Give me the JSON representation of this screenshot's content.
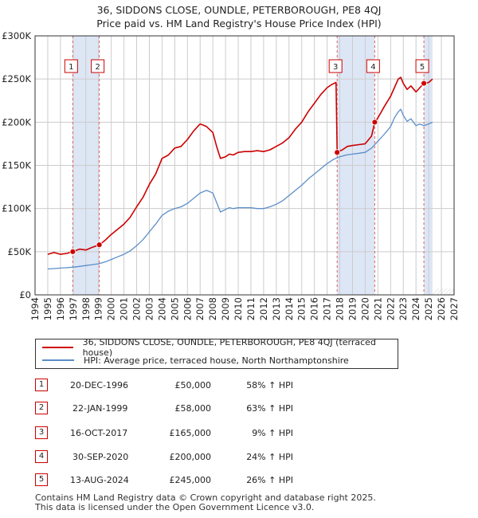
{
  "title_line1": "36, SIDDONS CLOSE, OUNDLE, PETERBOROUGH, PE8 4QJ",
  "title_line2": "Price paid vs. HM Land Registry's House Price Index (HPI)",
  "colors": {
    "property": "#cc0000",
    "hpi": "#5b8ec9",
    "shade": "#dde6f5",
    "grid": "#cccccc",
    "marker_line": "#e06060"
  },
  "chart_data": {
    "type": "line",
    "xlim": [
      1994,
      2027
    ],
    "ylim": [
      0,
      300000
    ],
    "x_ticks": [
      1994,
      1995,
      1996,
      1997,
      1998,
      1999,
      2000,
      2001,
      2002,
      2003,
      2004,
      2005,
      2006,
      2007,
      2008,
      2009,
      2010,
      2011,
      2012,
      2013,
      2014,
      2015,
      2016,
      2017,
      2018,
      2019,
      2020,
      2021,
      2022,
      2023,
      2024,
      2025,
      2026,
      2027
    ],
    "y_ticks": [
      0,
      50000,
      100000,
      150000,
      200000,
      250000,
      300000
    ],
    "y_tick_labels": [
      "£0",
      "£50K",
      "£100K",
      "£150K",
      "£200K",
      "£250K",
      "£300K"
    ],
    "shaded_ranges": [
      [
        1996.97,
        1999.06
      ],
      [
        2017.79,
        2020.75
      ],
      [
        2024.62,
        2025.3
      ]
    ],
    "series": [
      {
        "name": "36, SIDDONS CLOSE, OUNDLE, PETERBOROUGH, PE8 4QJ (terraced house)",
        "color": "#cc0000",
        "x": [
          1995.0,
          1995.5,
          1996.0,
          1996.5,
          1996.97,
          1997.5,
          1998.0,
          1998.5,
          1999.06,
          1999.5,
          2000.0,
          2000.5,
          2001.0,
          2001.5,
          2002.0,
          2002.5,
          2003.0,
          2003.5,
          2004.0,
          2004.5,
          2005.0,
          2005.5,
          2006.0,
          2006.5,
          2007.0,
          2007.5,
          2008.0,
          2008.3,
          2008.6,
          2009.0,
          2009.3,
          2009.6,
          2010.0,
          2010.5,
          2011.0,
          2011.5,
          2012.0,
          2012.5,
          2013.0,
          2013.5,
          2014.0,
          2014.5,
          2015.0,
          2015.5,
          2016.0,
          2016.5,
          2017.0,
          2017.4,
          2017.7,
          2017.79,
          2018.2,
          2018.6,
          2019.0,
          2019.5,
          2020.0,
          2020.5,
          2020.75,
          2021.0,
          2021.5,
          2022.0,
          2022.3,
          2022.6,
          2022.8,
          2023.0,
          2023.3,
          2023.6,
          2024.0,
          2024.3,
          2024.62,
          2025.0,
          2025.3
        ],
        "values": [
          47000,
          49000,
          47000,
          48000,
          50000,
          53000,
          52000,
          55000,
          58000,
          63000,
          70000,
          76000,
          82000,
          90000,
          102000,
          113000,
          128000,
          140000,
          158000,
          162000,
          170000,
          172000,
          180000,
          190000,
          198000,
          195000,
          188000,
          172000,
          158000,
          160000,
          163000,
          162000,
          165000,
          166000,
          166000,
          167000,
          166000,
          168000,
          172000,
          176000,
          182000,
          192000,
          200000,
          212000,
          222000,
          232000,
          240000,
          244000,
          246000,
          165000,
          168000,
          172000,
          173000,
          174000,
          175000,
          184000,
          200000,
          205000,
          218000,
          230000,
          240000,
          250000,
          252000,
          245000,
          238000,
          242000,
          235000,
          240000,
          245000,
          246000,
          250000
        ]
      },
      {
        "name": "HPI: Average price, terraced house, North Northamptonshire",
        "color": "#5b8ec9",
        "x": [
          1995.0,
          1995.5,
          1996.0,
          1996.5,
          1997.0,
          1997.5,
          1998.0,
          1998.5,
          1999.0,
          1999.5,
          2000.0,
          2000.5,
          2001.0,
          2001.5,
          2002.0,
          2002.5,
          2003.0,
          2003.5,
          2004.0,
          2004.5,
          2005.0,
          2005.5,
          2006.0,
          2006.5,
          2007.0,
          2007.5,
          2008.0,
          2008.3,
          2008.6,
          2009.0,
          2009.3,
          2009.6,
          2010.0,
          2010.5,
          2011.0,
          2011.5,
          2012.0,
          2012.5,
          2013.0,
          2013.5,
          2014.0,
          2014.5,
          2015.0,
          2015.5,
          2016.0,
          2016.5,
          2017.0,
          2017.5,
          2018.0,
          2018.5,
          2019.0,
          2019.5,
          2020.0,
          2020.5,
          2021.0,
          2021.5,
          2022.0,
          2022.3,
          2022.6,
          2022.8,
          2023.0,
          2023.3,
          2023.6,
          2024.0,
          2024.3,
          2024.6,
          2025.0,
          2025.3
        ],
        "values": [
          30000,
          30500,
          31000,
          31500,
          32000,
          33000,
          34000,
          35000,
          36000,
          38000,
          41000,
          44000,
          47000,
          51000,
          57000,
          64000,
          73000,
          82000,
          92000,
          97000,
          100000,
          102000,
          106000,
          112000,
          118000,
          121000,
          118000,
          107000,
          96000,
          99000,
          101000,
          100000,
          101000,
          101000,
          101000,
          100000,
          100000,
          102000,
          105000,
          109000,
          115000,
          121000,
          127000,
          134000,
          140000,
          146000,
          152000,
          157000,
          160000,
          162000,
          163000,
          164000,
          165000,
          170000,
          178000,
          186000,
          195000,
          205000,
          212000,
          215000,
          208000,
          201000,
          204000,
          196000,
          198000,
          196000,
          198000,
          200000
        ]
      }
    ],
    "sales": [
      {
        "num": "1",
        "x": 1996.97,
        "price": 50000
      },
      {
        "num": "2",
        "x": 1999.06,
        "price": 58000
      },
      {
        "num": "3",
        "x": 2017.79,
        "price": 165000
      },
      {
        "num": "4",
        "x": 2020.75,
        "price": 200000
      },
      {
        "num": "5",
        "x": 2024.62,
        "price": 245000
      }
    ]
  },
  "legend": {
    "property_label": "36, SIDDONS CLOSE, OUNDLE, PETERBOROUGH, PE8 4QJ (terraced house)",
    "hpi_label": "HPI: Average price, terraced house, North Northamptonshire"
  },
  "sales_table": [
    {
      "num": "1",
      "date": "20-DEC-1996",
      "price": "£50,000",
      "hpi": "58% ↑ HPI"
    },
    {
      "num": "2",
      "date": "22-JAN-1999",
      "price": "£58,000",
      "hpi": "63% ↑ HPI"
    },
    {
      "num": "3",
      "date": "16-OCT-2017",
      "price": "£165,000",
      "hpi": "9% ↑ HPI"
    },
    {
      "num": "4",
      "date": "30-SEP-2020",
      "price": "£200,000",
      "hpi": "24% ↑ HPI"
    },
    {
      "num": "5",
      "date": "13-AUG-2024",
      "price": "£245,000",
      "hpi": "26% ↑ HPI"
    }
  ],
  "footer": {
    "line1": "Contains HM Land Registry data © Crown copyright and database right 2025.",
    "line2": "This data is licensed under the Open Government Licence v3.0."
  }
}
